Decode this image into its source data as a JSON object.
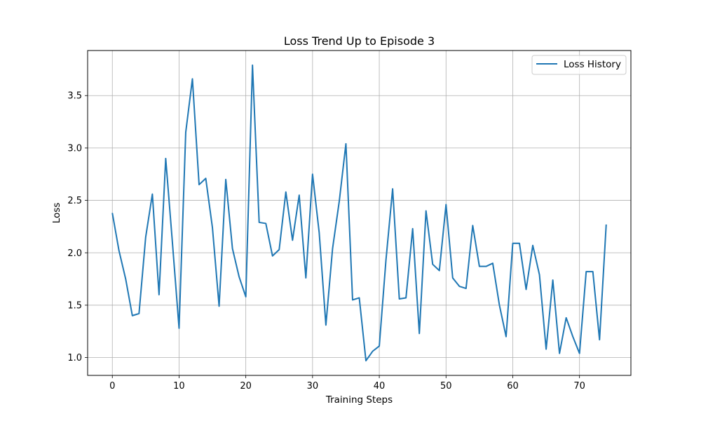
{
  "chart_data": {
    "type": "line",
    "title": "Loss Trend Up to Episode 3",
    "xlabel": "Training Steps",
    "ylabel": "Loss",
    "xlim": [
      -3.7,
      77.7
    ],
    "ylim": [
      0.83,
      3.93
    ],
    "xticks": [
      0,
      10,
      20,
      30,
      40,
      50,
      60,
      70
    ],
    "yticks": [
      1.0,
      1.5,
      2.0,
      2.5,
      3.0,
      3.5
    ],
    "ytick_labels": [
      "1.0",
      "1.5",
      "2.0",
      "2.5",
      "3.0",
      "3.5"
    ],
    "grid": true,
    "legend_position": "top-right",
    "series": [
      {
        "name": "Loss History",
        "color": "#1f77b4",
        "x": [
          0,
          1,
          2,
          3,
          4,
          5,
          6,
          7,
          8,
          9,
          10,
          11,
          12,
          13,
          14,
          15,
          16,
          17,
          18,
          19,
          20,
          21,
          22,
          23,
          24,
          25,
          26,
          27,
          28,
          29,
          30,
          31,
          32,
          33,
          34,
          35,
          36,
          37,
          38,
          39,
          40,
          41,
          42,
          43,
          44,
          45,
          46,
          47,
          48,
          49,
          50,
          51,
          52,
          53,
          54,
          55,
          56,
          57,
          58,
          59,
          60,
          61,
          62,
          63,
          64,
          65,
          66,
          67,
          68,
          69,
          70,
          71,
          72,
          73,
          74
        ],
        "values": [
          2.38,
          2.02,
          1.75,
          1.4,
          1.42,
          2.15,
          2.56,
          1.6,
          2.9,
          2.1,
          1.28,
          3.15,
          3.66,
          2.65,
          2.71,
          2.24,
          1.49,
          2.7,
          2.04,
          1.77,
          1.58,
          3.79,
          2.29,
          2.28,
          1.97,
          2.03,
          2.58,
          2.12,
          2.55,
          1.76,
          2.75,
          2.19,
          1.31,
          2.04,
          2.49,
          3.04,
          1.55,
          1.57,
          0.97,
          1.06,
          1.11,
          1.93,
          2.61,
          1.56,
          1.57,
          2.23,
          1.23,
          2.4,
          1.89,
          1.83,
          2.46,
          1.76,
          1.68,
          1.66,
          2.26,
          1.87,
          1.87,
          1.9,
          1.5,
          1.2,
          2.09,
          2.09,
          1.65,
          2.07,
          1.79,
          1.08,
          1.74,
          1.04,
          1.38,
          1.2,
          1.04,
          1.82,
          1.82,
          1.17,
          2.27
        ]
      }
    ]
  }
}
